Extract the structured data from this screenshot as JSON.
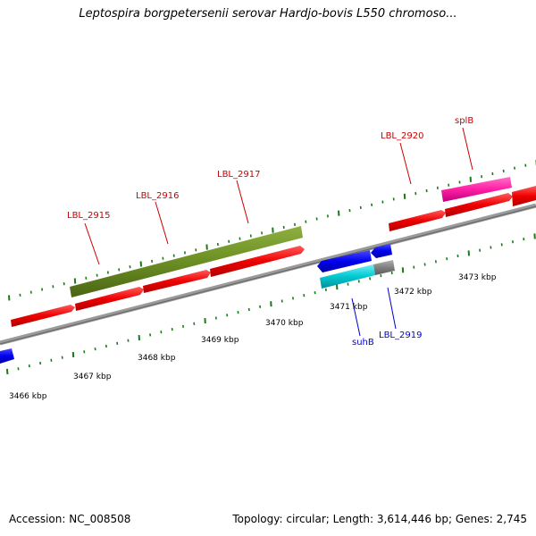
{
  "title": "Leptospira borgpetersenii serovar Hardjo-bovis L550 chromoso...",
  "footer": {
    "accession": "Accession: NC_008508",
    "summary": "Topology: circular; Length: 3,614,446 bp; Genes: 2,745"
  },
  "ticks": {
    "labels": [
      "3466 kbp",
      "3467 kbp",
      "3468 kbp",
      "3469 kbp",
      "3470 kbp",
      "3471 kbp",
      "3472 kbp",
      "3473 kbp"
    ]
  },
  "genes": {
    "top_labels": [
      "LBL_2915",
      "LBL_2916",
      "LBL_2917",
      "LBL_2920",
      "splB"
    ],
    "bottom_labels": [
      "suhB",
      "LBL_2919"
    ]
  },
  "colors": {
    "forward_gene": "#ff0000",
    "reverse_gene": "#0000ee",
    "olive_gene": "#6b8e23",
    "pink_gene": "#ff1fa5",
    "cyan_gene": "#00c8d0",
    "gray_gene": "#808080",
    "backbone": "#888888",
    "tick": "#1a7a1a",
    "label_red": "#cc0000",
    "label_blue": "#0000cc"
  }
}
